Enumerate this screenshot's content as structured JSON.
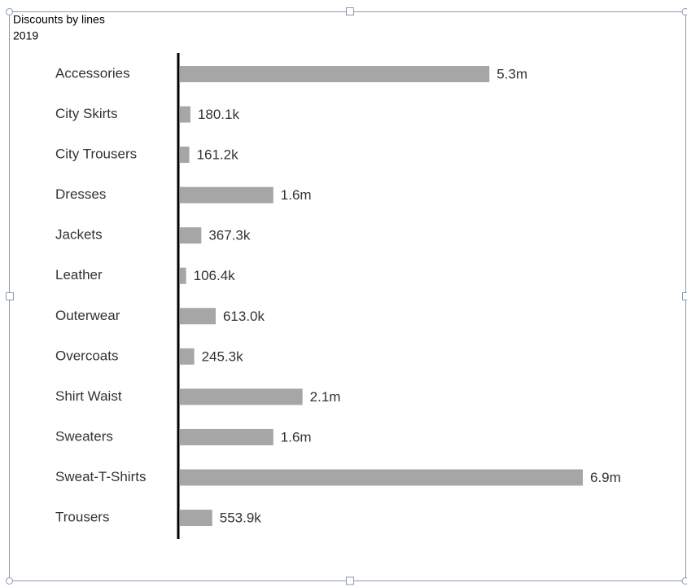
{
  "chart_data": {
    "type": "bar",
    "orientation": "horizontal",
    "title": "Discounts by lines",
    "subtitle": "2019",
    "color": "#a6a6a6",
    "categories": [
      "Accessories",
      "City Skirts",
      "City Trousers",
      "Dresses",
      "Jackets",
      "Leather",
      "Outerwear",
      "Overcoats",
      "Shirt Waist",
      "Sweaters",
      "Sweat-T-Shirts",
      "Trousers"
    ],
    "values": [
      5300000,
      180100,
      161200,
      1600000,
      367300,
      106400,
      613000,
      245300,
      2100000,
      1600000,
      6900000,
      553900
    ],
    "value_labels": [
      "5.3m",
      "180.1k",
      "161.2k",
      "1.6m",
      "367.3k",
      "106.4k",
      "613.0k",
      "245.3k",
      "2.1m",
      "1.6m",
      "6.9m",
      "553.9k"
    ]
  }
}
